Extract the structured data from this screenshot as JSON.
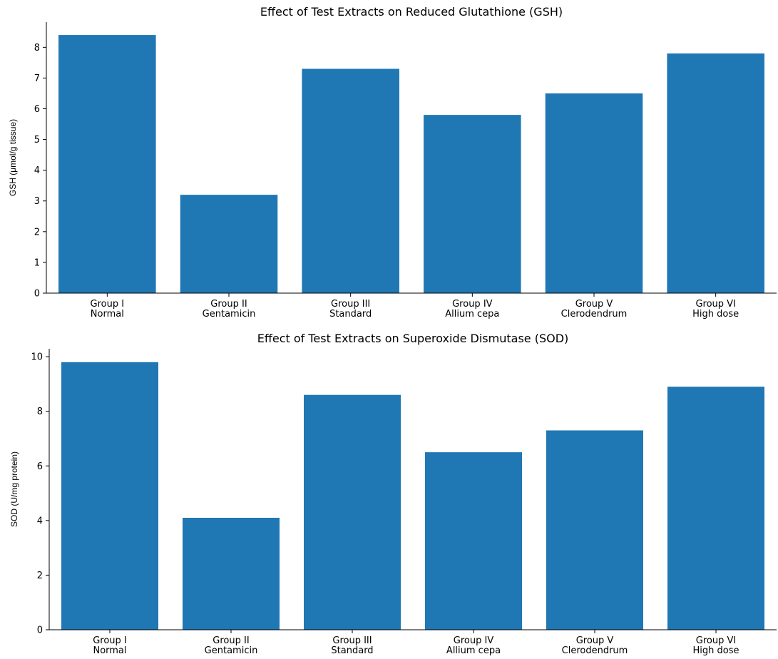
{
  "chart_data": [
    {
      "type": "bar",
      "title": "Effect of Test Extracts on Reduced Glutathione (GSH)",
      "xlabel": "",
      "ylabel": "GSH (μmol/g tissue)",
      "categories": [
        [
          "Group I",
          "Normal"
        ],
        [
          "Group II",
          "Gentamicin"
        ],
        [
          "Group III",
          "Standard"
        ],
        [
          "Group IV",
          "Allium cepa"
        ],
        [
          "Group V",
          "Clerodendrum"
        ],
        [
          "Group VI",
          "High dose"
        ]
      ],
      "values": [
        8.4,
        3.2,
        7.3,
        5.8,
        6.5,
        7.8
      ],
      "ylim": [
        0,
        8.82
      ],
      "yticks": [
        0,
        1,
        2,
        3,
        4,
        5,
        6,
        7,
        8
      ],
      "color": "#1f77b4",
      "grid": false
    },
    {
      "type": "bar",
      "title": "Effect of Test Extracts on Superoxide Dismutase (SOD)",
      "xlabel": "",
      "ylabel": "SOD (U/mg protein)",
      "categories": [
        [
          "Group I",
          "Normal"
        ],
        [
          "Group II",
          "Gentamicin"
        ],
        [
          "Group III",
          "Standard"
        ],
        [
          "Group IV",
          "Allium cepa"
        ],
        [
          "Group V",
          "Clerodendrum"
        ],
        [
          "Group VI",
          "High dose"
        ]
      ],
      "values": [
        9.8,
        4.1,
        8.6,
        6.5,
        7.3,
        8.9
      ],
      "ylim": [
        0,
        10.29
      ],
      "yticks": [
        0,
        2,
        4,
        6,
        8,
        10
      ],
      "color": "#1f77b4",
      "grid": false
    }
  ]
}
